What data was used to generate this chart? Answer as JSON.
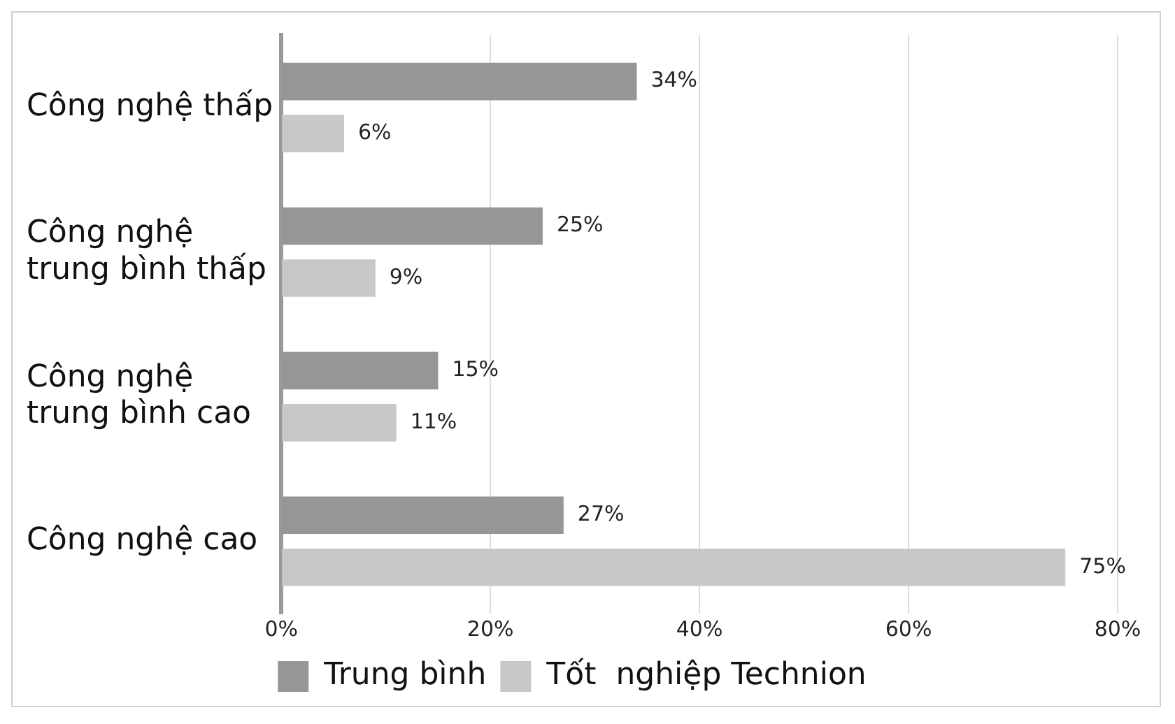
{
  "chart_data": {
    "type": "bar",
    "orientation": "horizontal",
    "categories": [
      "Công nghệ thấp",
      "Công nghệ\ntrung bình thấp",
      "Công nghệ\ntrung bình cao",
      "Công nghệ cao"
    ],
    "series": [
      {
        "name": "Trung bình",
        "color": "#969696",
        "values": [
          34,
          25,
          15,
          27
        ],
        "value_labels": [
          "34%",
          "25%",
          "15%",
          "27%"
        ]
      },
      {
        "name": "Tốt  nghiệp Technion",
        "color": "#c8c8c8",
        "values": [
          6,
          9,
          11,
          75
        ],
        "value_labels": [
          "6%",
          "9%",
          "11%",
          "75%"
        ]
      }
    ],
    "xlim": [
      0,
      80
    ],
    "xticks": [
      {
        "value": 0,
        "label": "0%"
      },
      {
        "value": 20,
        "label": "20%"
      },
      {
        "value": 40,
        "label": "40%"
      },
      {
        "value": 60,
        "label": "60%"
      },
      {
        "value": 80,
        "label": "80%"
      }
    ],
    "grid": "x",
    "legend": "bottom"
  }
}
